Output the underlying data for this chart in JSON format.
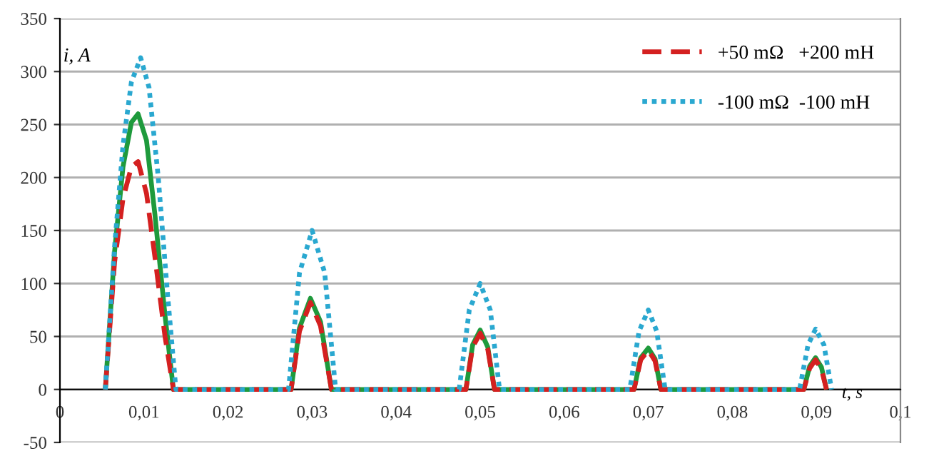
{
  "chart_data": {
    "type": "line",
    "xlabel": "t, s",
    "ylabel": "i, A",
    "xlim": [
      0,
      0.1
    ],
    "ylim": [
      -50,
      350
    ],
    "xticks": [
      0,
      {
        "value": 0.01,
        "label": "0,01"
      },
      {
        "value": 0.02,
        "label": "0,02"
      },
      {
        "value": 0.03,
        "label": "0,03"
      },
      {
        "value": 0.04,
        "label": "0,04"
      },
      {
        "value": 0.05,
        "label": "0,05"
      },
      {
        "value": 0.06,
        "label": "0,06"
      },
      {
        "value": 0.07,
        "label": "0,07"
      },
      {
        "value": 0.08,
        "label": "0,08"
      },
      {
        "value": 0.09,
        "label": "0,09"
      },
      {
        "value": 0.1,
        "label": "0,1"
      }
    ],
    "yticks": [
      -50,
      0,
      50,
      100,
      150,
      200,
      250,
      300,
      350
    ],
    "grid": "y",
    "legend": "top right",
    "marker": "none",
    "series": [
      {
        "color": "#1e9a3c",
        "line_style": "solid",
        "x": [
          0.0054,
          0.0065,
          0.0075,
          0.0085,
          0.0093,
          0.0103,
          0.0113,
          0.0125,
          0.0135,
          0.0275,
          0.0285,
          0.0298,
          0.031,
          0.0323,
          0.0483,
          0.0491,
          0.05,
          0.0509,
          0.0517,
          0.0683,
          0.0691,
          0.07,
          0.0708,
          0.0715,
          0.0885,
          0.0892,
          0.0899,
          0.0906,
          0.0912
        ],
        "values": [
          0,
          130,
          210,
          252,
          260,
          235,
          165,
          70,
          0,
          0,
          58,
          86,
          64,
          0,
          0,
          42,
          56,
          40,
          0,
          0,
          30,
          39,
          29,
          0,
          0,
          22,
          30,
          21,
          0
        ]
      },
      {
        "name": "+50 mΩ   +200 mH",
        "color": "#d42020",
        "line_style": "dashed",
        "x": [
          0.0054,
          0.0065,
          0.0075,
          0.0085,
          0.0093,
          0.0103,
          0.0113,
          0.0125,
          0.0135,
          0.0275,
          0.0285,
          0.0298,
          0.031,
          0.0323,
          0.0483,
          0.0491,
          0.05,
          0.0509,
          0.0517,
          0.0683,
          0.0691,
          0.07,
          0.0708,
          0.0715,
          0.0885,
          0.0892,
          0.0899,
          0.0906,
          0.0912
        ],
        "values": [
          0,
          120,
          180,
          210,
          215,
          185,
          125,
          50,
          0,
          0,
          55,
          82,
          60,
          0,
          0,
          40,
          53,
          38,
          0,
          0,
          28,
          37,
          27,
          0,
          0,
          20,
          28,
          19,
          0
        ]
      },
      {
        "name": "-100 mΩ  -100 mH",
        "color": "#2aa8d0",
        "line_style": "dotted",
        "x": [
          0.0054,
          0.0065,
          0.0075,
          0.0085,
          0.0096,
          0.0106,
          0.0117,
          0.0128,
          0.0138,
          0.0272,
          0.0285,
          0.03,
          0.0315,
          0.0328,
          0.0475,
          0.0487,
          0.05,
          0.0512,
          0.0523,
          0.0678,
          0.0689,
          0.07,
          0.071,
          0.072,
          0.088,
          0.089,
          0.0899,
          0.0909,
          0.0918
        ],
        "values": [
          0,
          135,
          230,
          290,
          313,
          285,
          200,
          90,
          0,
          0,
          110,
          150,
          110,
          0,
          0,
          75,
          100,
          75,
          0,
          0,
          55,
          75,
          55,
          0,
          0,
          42,
          57,
          42,
          0
        ]
      }
    ]
  }
}
